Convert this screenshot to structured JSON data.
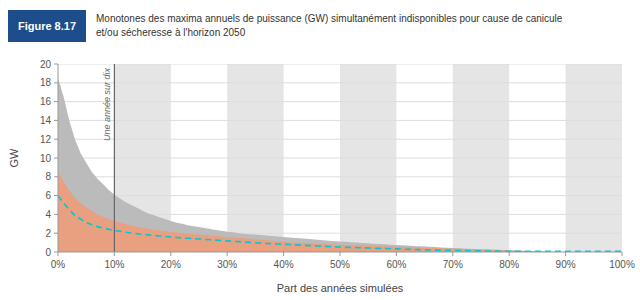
{
  "chart_data": {
    "type": "area",
    "title_box": {
      "text": "Figure 8.17",
      "color": "#1e4d8c"
    },
    "title": "Monotones des maxima annuels de puissance (GW) simultanément indisponibles pour cause de canicule\net/ou sécheresse à l'horizon 2050",
    "x_label": "Part des années simulées",
    "y_label": "GW",
    "xlim": [
      0,
      100
    ],
    "ylim": [
      0,
      20
    ],
    "xticks": [
      {
        "value": 0,
        "label": "0%"
      },
      {
        "value": 10,
        "label": "10%"
      },
      {
        "value": 20,
        "label": "20%"
      },
      {
        "value": 30,
        "label": "30%"
      },
      {
        "value": 40,
        "label": "40%"
      },
      {
        "value": 50,
        "label": "50%"
      },
      {
        "value": 60,
        "label": "60%"
      },
      {
        "value": 70,
        "label": "70%"
      },
      {
        "value": 80,
        "label": "80%"
      },
      {
        "value": 90,
        "label": "90%"
      },
      {
        "value": 100,
        "label": "100%"
      }
    ],
    "yticks": [
      0,
      2,
      4,
      6,
      8,
      10,
      12,
      14,
      16,
      18,
      20
    ],
    "grid": "y",
    "background_color": "#ffffff",
    "x_bands": {
      "ranges": [
        [
          10,
          20
        ],
        [
          30,
          40
        ],
        [
          50,
          60
        ],
        [
          70,
          80
        ],
        [
          90,
          100
        ]
      ],
      "color": "#e5e5e5"
    },
    "annotations": [
      {
        "type": "vline",
        "x": 10,
        "text": "Une année sur dix",
        "color": "#666666"
      }
    ],
    "x": [
      0,
      1,
      2,
      3,
      4,
      5,
      6,
      7,
      8,
      9,
      10,
      11,
      12,
      13,
      14,
      15,
      16,
      17,
      18,
      19,
      20,
      21,
      22,
      23,
      24,
      25,
      26,
      27,
      28,
      29,
      30,
      31,
      32,
      33,
      34,
      35,
      36,
      37,
      38,
      39,
      40,
      41,
      42,
      43,
      44,
      45,
      46,
      47,
      48,
      49,
      50,
      51,
      52,
      53,
      54,
      55,
      56,
      57,
      58,
      59,
      60,
      61,
      62,
      63,
      64,
      65,
      66,
      67,
      68,
      69,
      70,
      71,
      72,
      73,
      74,
      75,
      76,
      77,
      78,
      79,
      80,
      81,
      82,
      83,
      84,
      85,
      86,
      87,
      88,
      89,
      90,
      91,
      92,
      93,
      94,
      95,
      96,
      97,
      98,
      99,
      100
    ],
    "series": [
      {
        "type": "area",
        "color": "#bbbbbb",
        "values": [
          18.5,
          16.5,
          14.0,
          12.0,
          10.5,
          9.5,
          8.5,
          7.8,
          7.2,
          6.6,
          6.1,
          5.7,
          5.3,
          5.0,
          4.7,
          4.4,
          4.1,
          3.9,
          3.7,
          3.5,
          3.3,
          3.1,
          3.0,
          2.85,
          2.75,
          2.65,
          2.55,
          2.45,
          2.35,
          2.25,
          2.15,
          2.1,
          2.0,
          1.95,
          1.9,
          1.85,
          1.8,
          1.75,
          1.7,
          1.65,
          1.6,
          1.55,
          1.5,
          1.45,
          1.4,
          1.35,
          1.3,
          1.25,
          1.2,
          1.15,
          1.12,
          1.08,
          1.05,
          1.0,
          0.96,
          0.92,
          0.88,
          0.85,
          0.82,
          0.78,
          0.75,
          0.72,
          0.68,
          0.65,
          0.62,
          0.58,
          0.55,
          0.52,
          0.48,
          0.45,
          0.42,
          0.4,
          0.37,
          0.35,
          0.32,
          0.3,
          0.28,
          0.26,
          0.24,
          0.22,
          0.2,
          0.15,
          0.12,
          0.1,
          0.08,
          0.06,
          0.04,
          0.02,
          0.01,
          0.0,
          0.0,
          0.0,
          0.0,
          0.0,
          0.0,
          0.0,
          0.0,
          0.0,
          0.0,
          0.0,
          0.0
        ],
        "lower": [
          0.0,
          0.0,
          0.0,
          0.0,
          0.0,
          0.0,
          0.0,
          0.0,
          0.0,
          0.0,
          0.0,
          0.0,
          0.0,
          0.0,
          0.0,
          0.0,
          0.0,
          0.0,
          0.0,
          0.0,
          0.0,
          0.0,
          0.0,
          0.0,
          0.0,
          0.0,
          0.0,
          0.0,
          0.0,
          0.0,
          0.0,
          0.0,
          0.0,
          0.0,
          0.0,
          0.0,
          0.0,
          0.0,
          0.0,
          0.0,
          0.0,
          0.0,
          0.0,
          0.0,
          0.0,
          0.0,
          0.0,
          0.0,
          0.0,
          0.0,
          0.0,
          0.0,
          0.0,
          0.0,
          0.0,
          0.0,
          0.0,
          0.0,
          0.0,
          0.0,
          0.0,
          0.0,
          0.0,
          0.0,
          0.0,
          0.0,
          0.0,
          0.0,
          0.0,
          0.0,
          0.0,
          0.0,
          0.0,
          0.0,
          0.0,
          0.0,
          0.0,
          0.0,
          0.0,
          0.0,
          0.0,
          0.0,
          0.0,
          0.0,
          0.0,
          0.0,
          0.0,
          0.0,
          0.0,
          0.0,
          0.0,
          0.0,
          0.0,
          0.0,
          0.0,
          0.0,
          0.0,
          0.0,
          0.0,
          0.0,
          0.0
        ]
      },
      {
        "type": "area",
        "color": "#e8a080",
        "values": [
          8.5,
          7.5,
          6.5,
          5.8,
          5.2,
          4.75,
          4.35,
          4.0,
          3.72,
          3.5,
          3.3,
          3.12,
          2.96,
          2.82,
          2.7,
          2.58,
          2.48,
          2.38,
          2.3,
          2.22,
          2.15,
          2.08,
          2.02,
          1.96,
          1.9,
          1.85,
          1.8,
          1.75,
          1.7,
          1.65,
          1.6,
          1.55,
          1.5,
          1.45,
          1.4,
          1.35,
          1.3,
          1.25,
          1.2,
          1.15,
          1.1,
          1.05,
          1.02,
          0.98,
          0.95,
          0.92,
          0.88,
          0.85,
          0.82,
          0.78,
          0.76,
          0.74,
          0.72,
          0.7,
          0.68,
          0.66,
          0.64,
          0.62,
          0.6,
          0.58,
          0.56,
          0.54,
          0.52,
          0.5,
          0.48,
          0.46,
          0.44,
          0.42,
          0.4,
          0.38,
          0.36,
          0.34,
          0.32,
          0.3,
          0.28,
          0.26,
          0.24,
          0.22,
          0.2,
          0.18,
          0.16,
          0.14,
          0.12,
          0.1,
          0.08,
          0.06,
          0.04,
          0.02,
          0.01,
          0.0,
          0.0,
          0.0,
          0.0,
          0.0,
          0.0,
          0.0,
          0.0,
          0.0,
          0.0,
          0.0,
          0.0
        ],
        "lower": [
          0.0,
          0.0,
          0.0,
          0.0,
          0.0,
          0.0,
          0.0,
          0.0,
          0.0,
          0.0,
          0.0,
          0.0,
          0.0,
          0.0,
          0.0,
          0.0,
          0.0,
          0.0,
          0.0,
          0.0,
          0.0,
          0.0,
          0.0,
          0.0,
          0.0,
          0.0,
          0.0,
          0.0,
          0.0,
          0.0,
          0.0,
          0.0,
          0.0,
          0.0,
          0.0,
          0.0,
          0.0,
          0.0,
          0.0,
          0.0,
          0.0,
          0.0,
          0.0,
          0.0,
          0.0,
          0.0,
          0.0,
          0.0,
          0.0,
          0.0,
          0.0,
          0.0,
          0.0,
          0.0,
          0.0,
          0.0,
          0.0,
          0.0,
          0.0,
          0.0,
          0.0,
          0.0,
          0.0,
          0.0,
          0.0,
          0.0,
          0.0,
          0.0,
          0.0,
          0.0,
          0.0,
          0.0,
          0.0,
          0.0,
          0.0,
          0.0,
          0.0,
          0.0,
          0.0,
          0.0,
          0.0,
          0.0,
          0.0,
          0.0,
          0.0,
          0.0,
          0.0,
          0.0,
          0.0,
          0.0,
          0.0,
          0.0,
          0.0,
          0.0,
          0.0,
          0.0,
          0.0,
          0.0,
          0.0,
          0.0,
          0.0
        ]
      },
      {
        "type": "line",
        "color": "#00c8d4",
        "line_style": "dashed",
        "values": [
          6.0,
          5.2,
          4.5,
          3.9,
          3.5,
          3.15,
          2.9,
          2.7,
          2.55,
          2.42,
          2.3,
          2.2,
          2.1,
          2.02,
          1.95,
          1.88,
          1.82,
          1.76,
          1.7,
          1.65,
          1.6,
          1.55,
          1.5,
          1.46,
          1.42,
          1.38,
          1.34,
          1.3,
          1.26,
          1.22,
          1.18,
          1.14,
          1.1,
          1.06,
          1.02,
          0.98,
          0.94,
          0.91,
          0.88,
          0.85,
          0.82,
          0.79,
          0.76,
          0.73,
          0.7,
          0.67,
          0.64,
          0.61,
          0.58,
          0.55,
          0.53,
          0.51,
          0.49,
          0.47,
          0.45,
          0.43,
          0.41,
          0.39,
          0.37,
          0.35,
          0.33,
          0.31,
          0.29,
          0.27,
          0.25,
          0.23,
          0.21,
          0.2,
          0.19,
          0.18,
          0.17,
          0.16,
          0.15,
          0.14,
          0.13,
          0.12,
          0.11,
          0.1,
          0.09,
          0.08,
          0.07,
          0.07,
          0.07,
          0.07,
          0.07,
          0.07,
          0.07,
          0.07,
          0.07,
          0.07,
          0.07,
          0.07,
          0.07,
          0.07,
          0.07,
          0.07,
          0.07,
          0.07,
          0.07,
          0.07,
          0.07
        ]
      }
    ]
  }
}
